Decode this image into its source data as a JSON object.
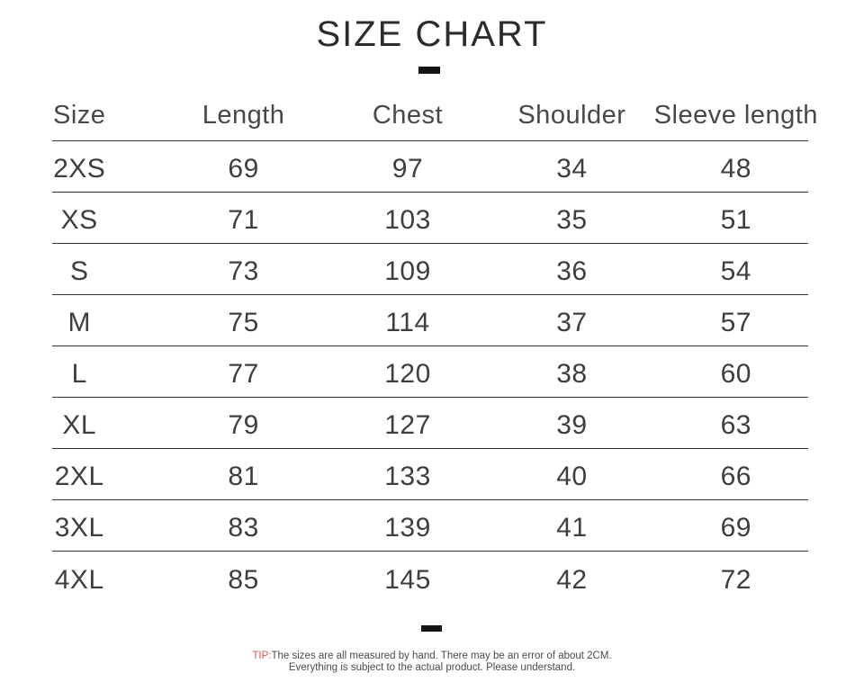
{
  "title": "SIZE CHART",
  "tip": {
    "label": "TIP:",
    "line1": "The sizes are all measured by hand. There may be an error of about 2CM.",
    "line2": "Everything is subject to the actual product. Please understand."
  },
  "colors": {
    "text": "#3e3e3e",
    "title": "#2c2c2c",
    "rule_line": "#2f2f2f",
    "dash": "#141414",
    "tip_accent_red": "#e0564d",
    "tip_text_gray": "#4a4a4a",
    "background": "#ffffff"
  },
  "chart_data": {
    "type": "table",
    "title": "SIZE CHART",
    "columns": [
      "Size",
      "Length",
      "Chest",
      "Shoulder",
      "Sleeve length"
    ],
    "rows": [
      [
        "2XS",
        "69",
        "97",
        "34",
        "48"
      ],
      [
        "XS",
        "71",
        "103",
        "35",
        "51"
      ],
      [
        "S",
        "73",
        "109",
        "36",
        "54"
      ],
      [
        "M",
        "75",
        "114",
        "37",
        "57"
      ],
      [
        "L",
        "77",
        "120",
        "38",
        "60"
      ],
      [
        "XL",
        "79",
        "127",
        "39",
        "63"
      ],
      [
        "2XL",
        "81",
        "133",
        "40",
        "66"
      ],
      [
        "3XL",
        "83",
        "139",
        "41",
        "69"
      ],
      [
        "4XL",
        "85",
        "145",
        "42",
        "72"
      ]
    ],
    "layout": {
      "grid": "horizontal rules between rows only",
      "header_separator": true,
      "last_row_underline": false
    }
  }
}
